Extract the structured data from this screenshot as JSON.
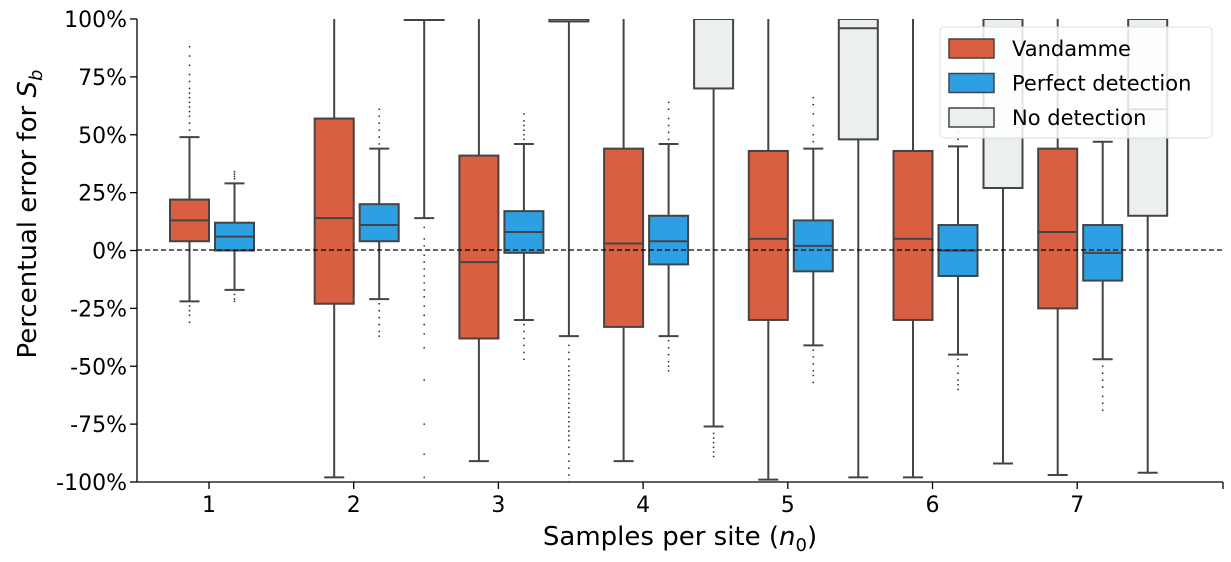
{
  "chart_data": {
    "type": "box",
    "xlabel": "Samples per site (n0)",
    "ylabel": "Percentual error for Sb",
    "categories": [
      "1",
      "2",
      "3",
      "4",
      "5",
      "6",
      "7"
    ],
    "ylim": [
      -100,
      100
    ],
    "yticks": [
      -100,
      -75,
      -50,
      -25,
      0,
      25,
      50,
      75,
      100
    ],
    "ytick_labels": [
      "-100%",
      "-75%",
      "-50%",
      "-25%",
      "0%",
      "25%",
      "50%",
      "75%",
      "100%"
    ],
    "reference_line": {
      "y": 0,
      "style": "dashed"
    },
    "legend_position": "top-right",
    "grid": false,
    "series": [
      {
        "name": "Vandamme",
        "color": "#d95f43",
        "boxes": [
          {
            "category": "1",
            "whisker_low": -22,
            "q1": 4,
            "median": 13,
            "q3": 22,
            "whisker_high": 49,
            "outliers": [
              -24,
              -26,
              -28,
              -31,
              52,
              55,
              58,
              60,
              62,
              64,
              66,
              68,
              70,
              73,
              76,
              80,
              84,
              88
            ]
          },
          {
            "category": "2",
            "whisker_low": -98,
            "q1": -23,
            "median": 14,
            "q3": 57,
            "whisker_high": 100,
            "outliers": []
          },
          {
            "category": "3",
            "whisker_low": -91,
            "q1": -38,
            "median": -5,
            "q3": 41,
            "whisker_high": 100,
            "outliers": []
          },
          {
            "category": "4",
            "whisker_low": -91,
            "q1": -33,
            "median": 3,
            "q3": 44,
            "whisker_high": 100,
            "outliers": []
          },
          {
            "category": "5",
            "whisker_low": -99,
            "q1": -30,
            "median": 5,
            "q3": 43,
            "whisker_high": 100,
            "outliers": []
          },
          {
            "category": "6",
            "whisker_low": -98,
            "q1": -30,
            "median": 5,
            "q3": 43,
            "whisker_high": 100,
            "outliers": []
          },
          {
            "category": "7",
            "whisker_low": -97,
            "q1": -25,
            "median": 8,
            "q3": 44,
            "whisker_high": 100,
            "outliers": []
          }
        ]
      },
      {
        "name": "Perfect detection",
        "color": "#2d9fe3",
        "boxes": [
          {
            "category": "1",
            "whisker_low": -17,
            "q1": 0,
            "median": 6,
            "q3": 12,
            "whisker_high": 29,
            "outliers": [
              -19,
              -21,
              -22,
              31,
              32,
              33,
              34
            ]
          },
          {
            "category": "2",
            "whisker_low": -21,
            "q1": 4,
            "median": 11,
            "q3": 20,
            "whisker_high": 44,
            "outliers": [
              -23,
              -26,
              -29,
              -32,
              -35,
              -37,
              46,
              49,
              52,
              55,
              58,
              61
            ]
          },
          {
            "category": "3",
            "whisker_low": -30,
            "q1": -1,
            "median": 8,
            "q3": 17,
            "whisker_high": 46,
            "outliers": [
              -32,
              -35,
              -38,
              -41,
              -44,
              -47,
              48,
              50,
              52,
              54,
              56,
              59
            ]
          },
          {
            "category": "4",
            "whisker_low": -37,
            "q1": -6,
            "median": 4,
            "q3": 15,
            "whisker_high": 46,
            "outliers": [
              -39,
              -42,
              -45,
              -48,
              -50,
              -52,
              48,
              51,
              54,
              57,
              61,
              64
            ]
          },
          {
            "category": "5",
            "whisker_low": -41,
            "q1": -9,
            "median": 2,
            "q3": 13,
            "whisker_high": 44,
            "outliers": [
              -43,
              -46,
              -49,
              -52,
              -54,
              -57,
              47,
              50,
              54,
              59,
              63,
              66
            ]
          },
          {
            "category": "6",
            "whisker_low": -45,
            "q1": -11,
            "median": 0,
            "q3": 11,
            "whisker_high": 45,
            "outliers": [
              -47,
              -50,
              -53,
              -56,
              -58,
              -60,
              48,
              51,
              54,
              57,
              60,
              62
            ]
          },
          {
            "category": "7",
            "whisker_low": -47,
            "q1": -13,
            "median": -1,
            "q3": 11,
            "whisker_high": 47,
            "outliers": [
              -50,
              -53,
              -56,
              -59,
              -63,
              -66,
              -69
            ]
          }
        ]
      },
      {
        "name": "No detection",
        "color": "#eceff0",
        "boxes": [
          {
            "category": "1",
            "whisker_low": null,
            "q1": null,
            "median": null,
            "q3": null,
            "whisker_high": null,
            "outliers": []
          },
          {
            "category": "2",
            "whisker_low": 14,
            "q1": 100,
            "median": 100,
            "q3": 100,
            "whisker_high": 100,
            "outliers": [
              10,
              5,
              2,
              -2,
              -5,
              -8,
              -11,
              -14,
              -17,
              -20,
              -24,
              -28,
              -32,
              -36,
              -42,
              -56,
              -75,
              -88,
              -98
            ]
          },
          {
            "category": "3",
            "whisker_low": -37,
            "q1": 99,
            "median": 99,
            "q3": 100,
            "whisker_high": 100,
            "outliers": [
              -41,
              -44,
              -47,
              -50,
              -52,
              -54,
              -56,
              -58,
              -60,
              -62,
              -64,
              -66,
              -68,
              -70,
              -72,
              -74,
              -76,
              -78,
              -80,
              -82,
              -85,
              -88,
              -91,
              -94,
              -97,
              -100
            ]
          },
          {
            "category": "4",
            "whisker_low": -76,
            "q1": 70,
            "median": 100,
            "q3": 100,
            "whisker_high": 100,
            "outliers": [
              -79,
              -81,
              -83,
              -85,
              -87,
              -89
            ]
          },
          {
            "category": "5",
            "whisker_low": -98,
            "q1": 48,
            "median": 96,
            "q3": 100,
            "whisker_high": 100,
            "outliers": []
          },
          {
            "category": "6",
            "whisker_low": -92,
            "q1": 27,
            "median": 100,
            "q3": 100,
            "whisker_high": 100,
            "outliers": []
          },
          {
            "category": "7",
            "whisker_low": -96,
            "q1": 15,
            "median": 61,
            "q3": 100,
            "whisker_high": 100,
            "outliers": []
          }
        ]
      }
    ]
  }
}
